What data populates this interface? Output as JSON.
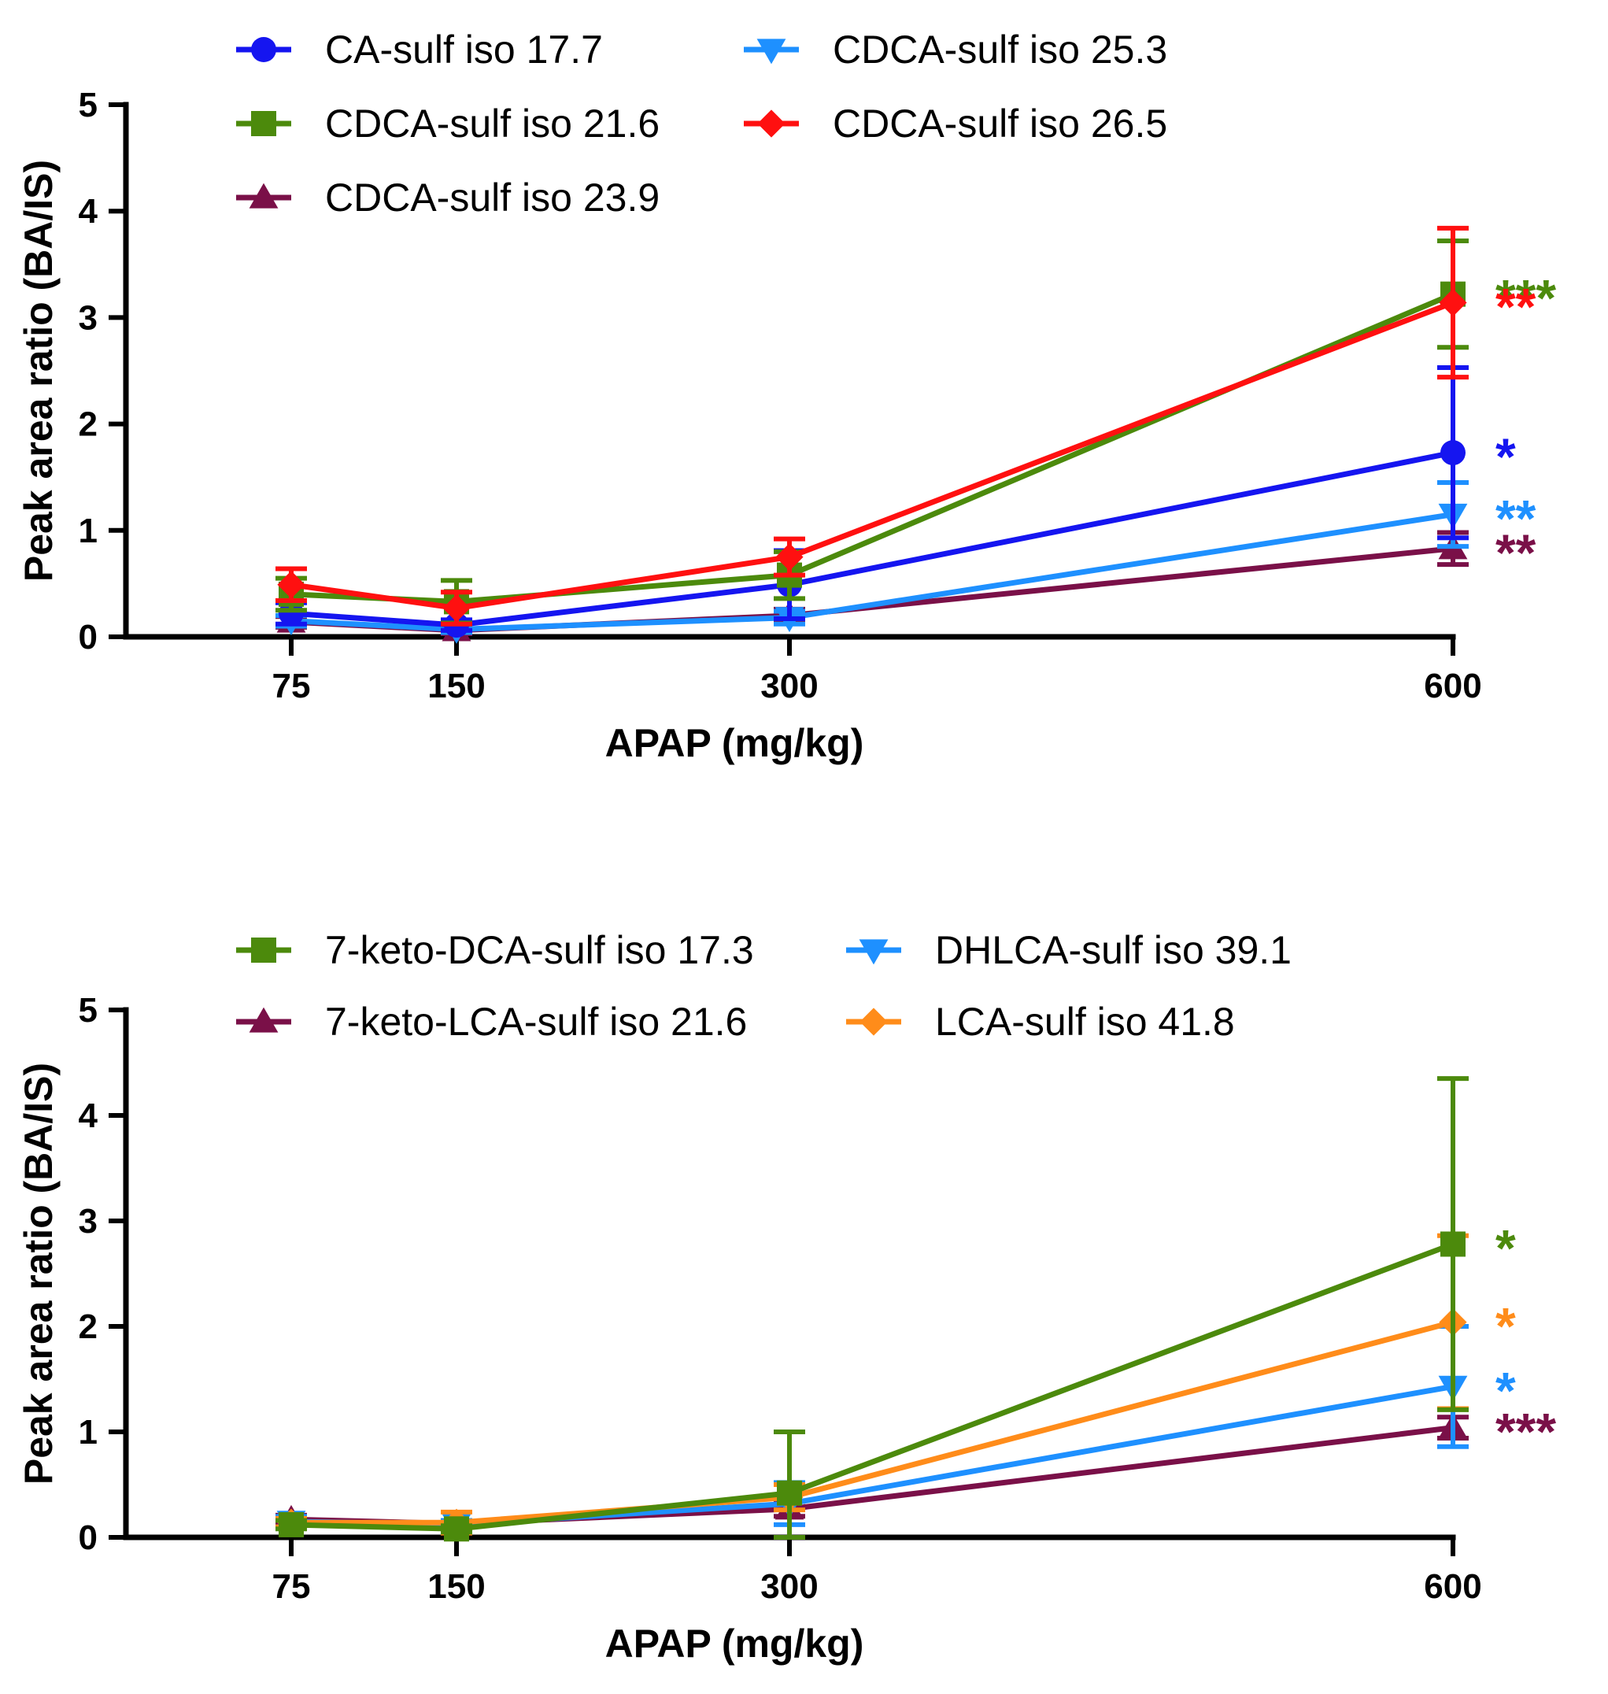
{
  "chart_data": [
    {
      "type": "line",
      "title": "",
      "xlabel": "APAP (mg/kg)",
      "ylabel": "Peak area ratio (BA/IS)",
      "x": [
        75,
        150,
        300,
        600
      ],
      "x_tick_labels": [
        "75",
        "150",
        "300",
        "600"
      ],
      "ylim": [
        0,
        5
      ],
      "y_ticks": [
        0,
        1,
        2,
        3,
        4,
        5
      ],
      "y_tick_labels": [
        "0",
        "1",
        "2",
        "3",
        "4",
        "5"
      ],
      "legend_position": "top",
      "series": [
        {
          "name": "CDCA-sulf iso 23.9",
          "color": "#7a1048",
          "marker": "triangle-up",
          "values": [
            0.14,
            0.06,
            0.2,
            0.83
          ],
          "errors": [
            0.05,
            0.03,
            0.06,
            0.15
          ],
          "significance": "**"
        },
        {
          "name": "CDCA-sulf iso 25.3",
          "color": "#1e90ff",
          "marker": "triangle-down",
          "values": [
            0.15,
            0.07,
            0.18,
            1.15
          ],
          "errors": [
            0.05,
            0.03,
            0.06,
            0.3
          ],
          "significance": "**"
        },
        {
          "name": "CA-sulf iso 17.7",
          "color": "#1515f0",
          "marker": "circle",
          "values": [
            0.22,
            0.11,
            0.49,
            1.73
          ],
          "errors": [
            0.1,
            0.05,
            0.32,
            0.8
          ],
          "significance": "*"
        },
        {
          "name": "CDCA-sulf iso 21.6",
          "color": "#4c8a0c",
          "marker": "square",
          "values": [
            0.4,
            0.33,
            0.58,
            3.22
          ],
          "errors": [
            0.15,
            0.2,
            0.22,
            0.5
          ],
          "significance": "***"
        },
        {
          "name": "CDCA-sulf iso 26.5",
          "color": "#ff1010",
          "marker": "diamond",
          "values": [
            0.49,
            0.27,
            0.75,
            3.14
          ],
          "errors": [
            0.15,
            0.15,
            0.17,
            0.7
          ],
          "significance": "**"
        }
      ],
      "legend_order": [
        "CA-sulf iso 17.7",
        "CDCA-sulf iso 25.3",
        "CDCA-sulf iso 21.6",
        "CDCA-sulf iso 26.5",
        "CDCA-sulf iso 23.9"
      ]
    },
    {
      "type": "line",
      "title": "",
      "xlabel": "APAP (mg/kg)",
      "ylabel": "Peak area ratio (BA/IS)",
      "x": [
        75,
        150,
        300,
        600
      ],
      "x_tick_labels": [
        "75",
        "150",
        "300",
        "600"
      ],
      "ylim": [
        0,
        5
      ],
      "y_ticks": [
        0,
        1,
        2,
        3,
        4,
        5
      ],
      "y_tick_labels": [
        "0",
        "1",
        "2",
        "3",
        "4",
        "5"
      ],
      "legend_position": "top",
      "series": [
        {
          "name": "7-keto-LCA-sulf iso 21.6",
          "color": "#7a1048",
          "marker": "triangle-up",
          "values": [
            0.17,
            0.13,
            0.27,
            1.04
          ],
          "errors": [
            0.04,
            0.03,
            0.07,
            0.1
          ],
          "significance": "***"
        },
        {
          "name": "DHLCA-sulf iso 39.1",
          "color": "#1e90ff",
          "marker": "triangle-down",
          "values": [
            0.15,
            0.12,
            0.32,
            1.43
          ],
          "errors": [
            0.05,
            0.04,
            0.2,
            0.57
          ],
          "significance": "*"
        },
        {
          "name": "LCA-sulf iso 41.8",
          "color": "#ff8c1a",
          "marker": "diamond",
          "values": [
            0.14,
            0.14,
            0.38,
            2.04
          ],
          "errors": [
            0.04,
            0.1,
            0.12,
            0.82
          ],
          "significance": "*"
        },
        {
          "name": "7-keto-DCA-sulf iso 17.3",
          "color": "#4c8a0c",
          "marker": "square",
          "values": [
            0.12,
            0.08,
            0.42,
            2.78
          ],
          "errors": [
            0.04,
            0.03,
            0.58,
            1.57
          ],
          "significance": "*"
        }
      ],
      "legend_order": [
        "7-keto-DCA-sulf iso 17.3",
        "DHLCA-sulf iso 39.1",
        "7-keto-LCA-sulf iso 21.6",
        "LCA-sulf iso 41.8"
      ]
    }
  ]
}
